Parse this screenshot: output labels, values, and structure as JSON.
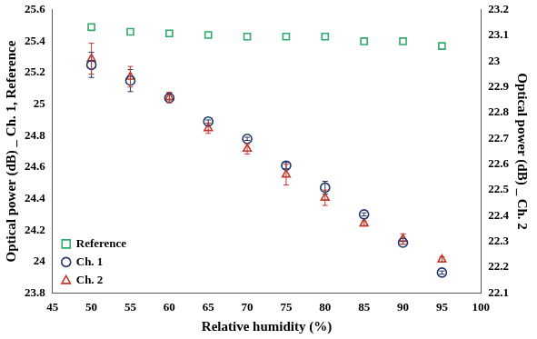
{
  "chart_data": {
    "type": "scatter",
    "xlabel": "Relative humidity (%)",
    "ylabel": "Optical power (dB) _ Ch. 1, Reference",
    "y2label": "Optical power (dB) _ Ch. 2",
    "x": [
      50,
      55,
      60,
      65,
      70,
      75,
      80,
      85,
      90,
      95
    ],
    "series": [
      {
        "name": "Reference",
        "color": "#2eaa6a",
        "marker": "square",
        "values": [
          25.49,
          25.46,
          25.45,
          25.44,
          25.43,
          25.43,
          25.43,
          25.4,
          25.4,
          25.37
        ]
      },
      {
        "name": "Ch. 1",
        "color": "#1f3569",
        "marker": "circle",
        "values": [
          25.25,
          25.15,
          25.04,
          24.89,
          24.78,
          24.61,
          24.47,
          24.3,
          24.12,
          23.93
        ],
        "errors": [
          0.08,
          0.07,
          0.03,
          0.01,
          0.01,
          0.02,
          0.04,
          0.01,
          0.01,
          0.01
        ]
      },
      {
        "name": "Ch. 2",
        "color": "#c0392b",
        "marker": "triangle",
        "axis": "y2",
        "values": [
          23.01,
          22.94,
          22.86,
          22.74,
          22.66,
          22.56,
          22.47,
          22.37,
          22.31,
          22.23
        ],
        "errors": [
          0.06,
          0.04,
          0.02,
          0.02,
          0.02,
          0.04,
          0.03,
          0.01,
          0.02,
          0.01
        ]
      }
    ],
    "xlim": [
      45,
      100
    ],
    "xticks": [
      45,
      50,
      55,
      60,
      65,
      70,
      75,
      80,
      85,
      90,
      95,
      100
    ],
    "ylim": [
      23.8,
      25.6
    ],
    "yticks": [
      23.8,
      24,
      24.2,
      24.4,
      24.6,
      24.8,
      25,
      25.2,
      25.4,
      25.6
    ],
    "y2lim": [
      22.1,
      23.2
    ],
    "y2ticks": [
      22.1,
      22.2,
      22.3,
      22.4,
      22.5,
      22.6,
      22.7,
      22.8,
      22.9,
      23,
      23.1,
      23.2
    ],
    "grid": false,
    "legend": "lower left"
  }
}
